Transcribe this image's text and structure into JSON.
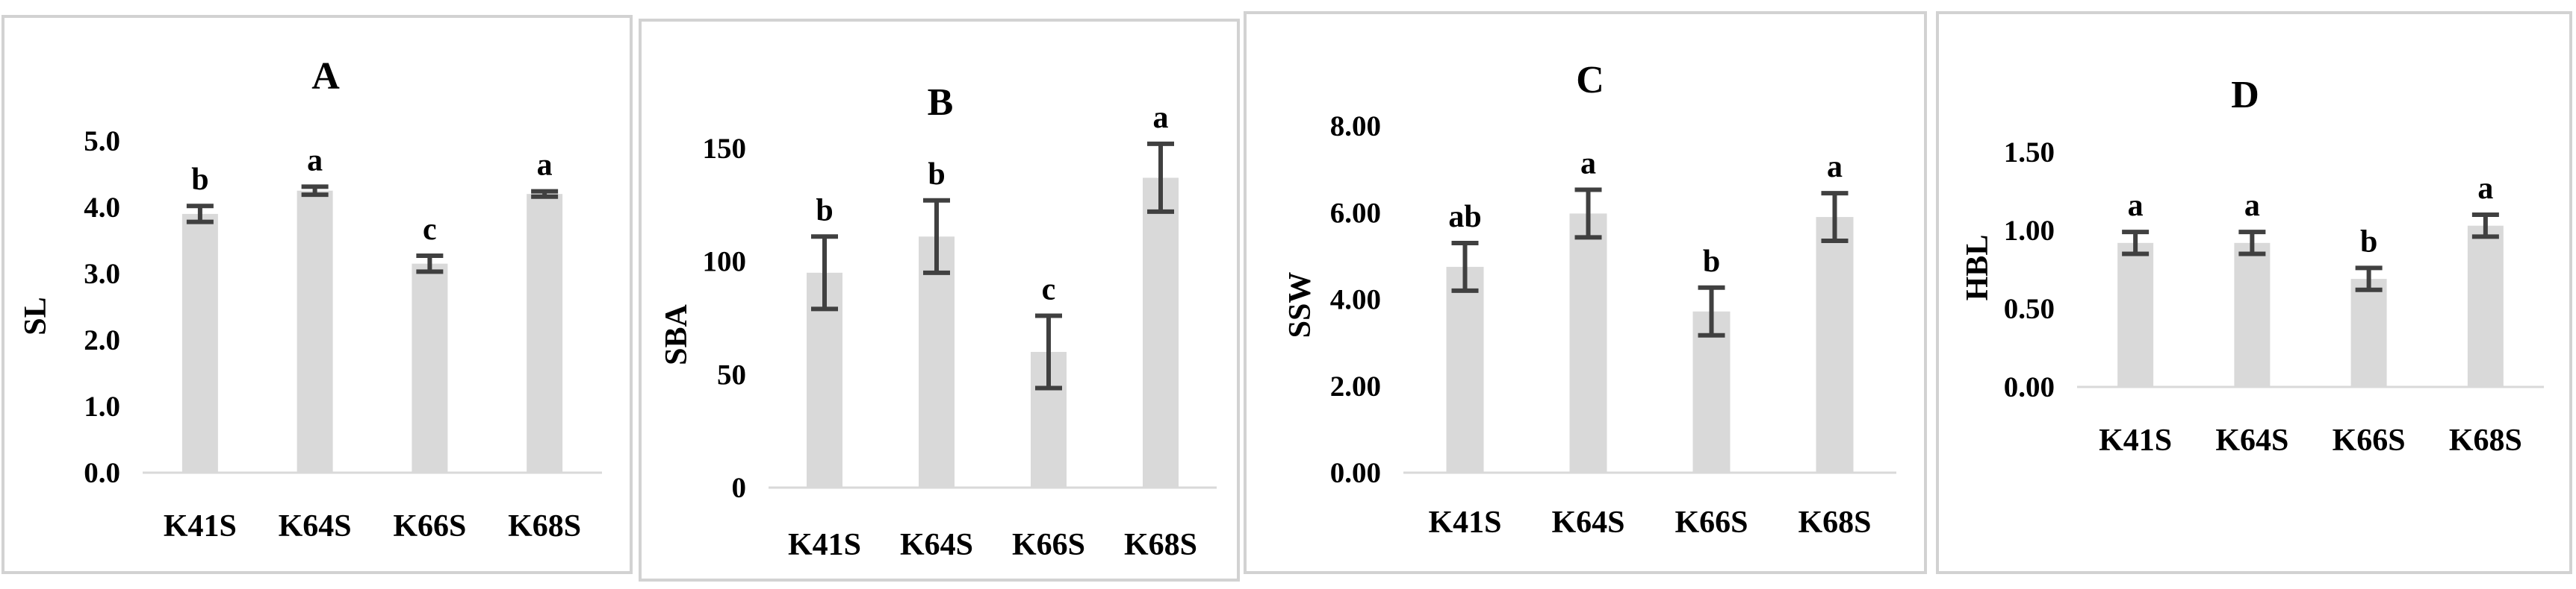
{
  "chart_data": [
    {
      "type": "bar",
      "title": "A",
      "ylabel": "SL",
      "categories": [
        "K41S",
        "K64S",
        "K66S",
        "K68S"
      ],
      "values": [
        3.9,
        4.25,
        3.15,
        4.2
      ],
      "errors": [
        0.12,
        0.06,
        0.12,
        0.04
      ],
      "significance": [
        "b",
        "a",
        "c",
        "a"
      ],
      "ylim": [
        0,
        5
      ],
      "yticks": [
        0,
        1,
        2,
        3,
        4,
        5
      ],
      "ytick_labels": [
        "0.0",
        "1.0",
        "2.0",
        "3.0",
        "4.0",
        "5.0"
      ],
      "grid": false
    },
    {
      "type": "bar",
      "title": "B",
      "ylabel": "SBA",
      "categories": [
        "K41S",
        "K64S",
        "K66S",
        "K68S"
      ],
      "values": [
        95,
        111,
        60,
        137
      ],
      "errors": [
        16,
        16,
        16,
        15
      ],
      "significance": [
        "b",
        "b",
        "c",
        "a"
      ],
      "ylim": [
        0,
        150
      ],
      "yticks": [
        0,
        50,
        100,
        150
      ],
      "ytick_labels": [
        "0",
        "50",
        "100",
        "150"
      ],
      "grid": false
    },
    {
      "type": "bar",
      "title": "C",
      "ylabel": "SSW",
      "categories": [
        "K41S",
        "K64S",
        "K66S",
        "K68S"
      ],
      "values": [
        4.75,
        5.98,
        3.72,
        5.9
      ],
      "errors": [
        0.55,
        0.55,
        0.55,
        0.55
      ],
      "significance": [
        "ab",
        "a",
        "b",
        "a"
      ],
      "ylim": [
        0,
        8
      ],
      "yticks": [
        0,
        2,
        4,
        6,
        8
      ],
      "ytick_labels": [
        "0.00",
        "2.00",
        "4.00",
        "6.00",
        "8.00"
      ],
      "grid": false
    },
    {
      "type": "bar",
      "title": "D",
      "ylabel": "HBL",
      "categories": [
        "K41S",
        "K64S",
        "K66S",
        "K68S"
      ],
      "values": [
        0.92,
        0.92,
        0.69,
        1.03
      ],
      "errors": [
        0.07,
        0.07,
        0.07,
        0.07
      ],
      "significance": [
        "a",
        "a",
        "b",
        "a"
      ],
      "ylim": [
        0,
        1.5
      ],
      "yticks": [
        0,
        0.5,
        1.0,
        1.5
      ],
      "ytick_labels": [
        "0.00",
        "0.50",
        "1.00",
        "1.50"
      ],
      "grid": false
    }
  ]
}
